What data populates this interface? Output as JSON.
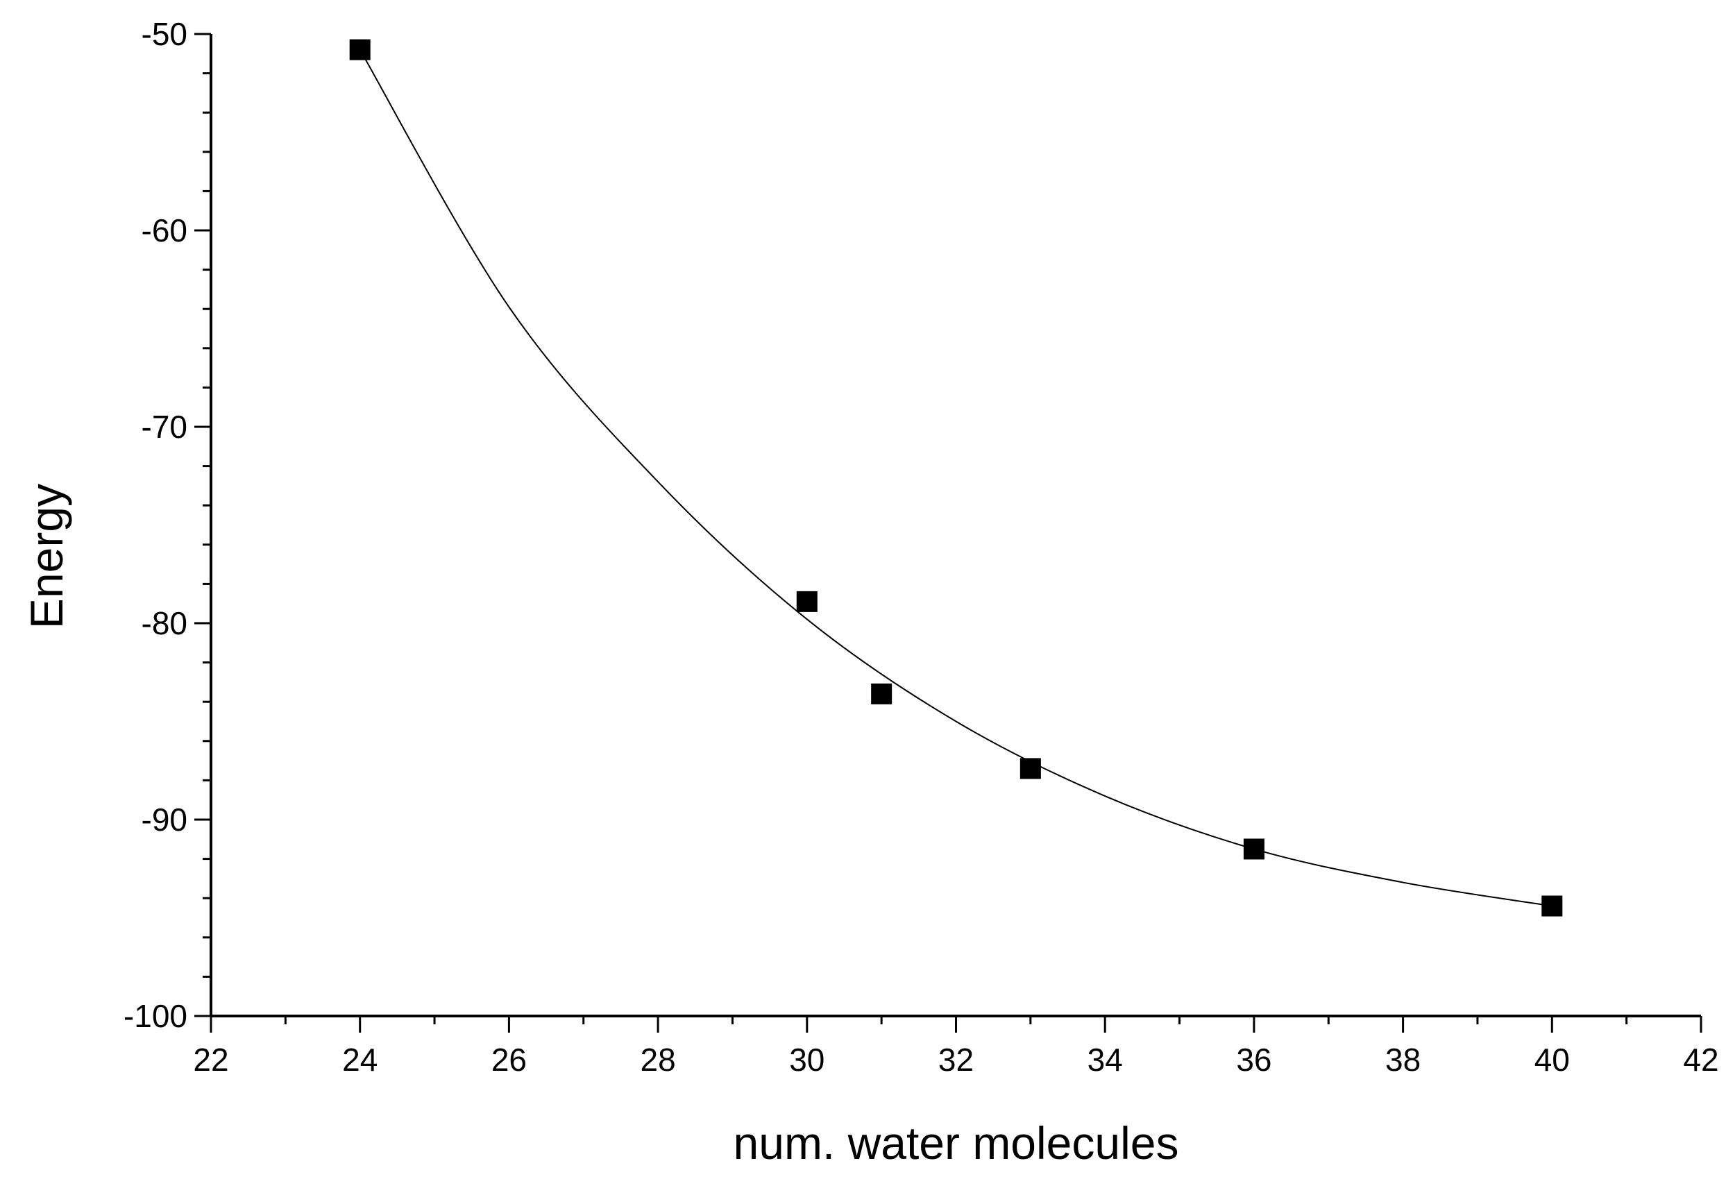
{
  "chart_data": {
    "type": "scatter",
    "title": "",
    "xlabel": "num. water molecules",
    "ylabel": "Energy",
    "xlim": [
      22,
      42
    ],
    "ylim": [
      -100,
      -50
    ],
    "x_ticks": [
      22,
      24,
      26,
      28,
      30,
      32,
      34,
      36,
      38,
      40,
      42
    ],
    "y_ticks": [
      -100,
      -90,
      -80,
      -70,
      -60,
      -50
    ],
    "x_minor_step": 1,
    "y_minor_step": 2,
    "grid": false,
    "legend": "none",
    "series": [
      {
        "points": [
          {
            "x": 24,
            "y": -50.8
          },
          {
            "x": 30,
            "y": -78.9
          },
          {
            "x": 31,
            "y": -83.6
          },
          {
            "x": 33,
            "y": -87.4
          },
          {
            "x": 36,
            "y": -91.5
          },
          {
            "x": 40,
            "y": -94.4
          }
        ],
        "marker": "square",
        "color": "#000000"
      }
    ],
    "fit_curve": {
      "type": "exponential-decay",
      "color": "#000000",
      "x": [
        24,
        26,
        28,
        30,
        32,
        34,
        36,
        38,
        40
      ],
      "y": [
        -50.8,
        -63.9,
        -72.8,
        -79.8,
        -85.0,
        -88.8,
        -91.5,
        -93.2,
        -94.4
      ]
    }
  }
}
